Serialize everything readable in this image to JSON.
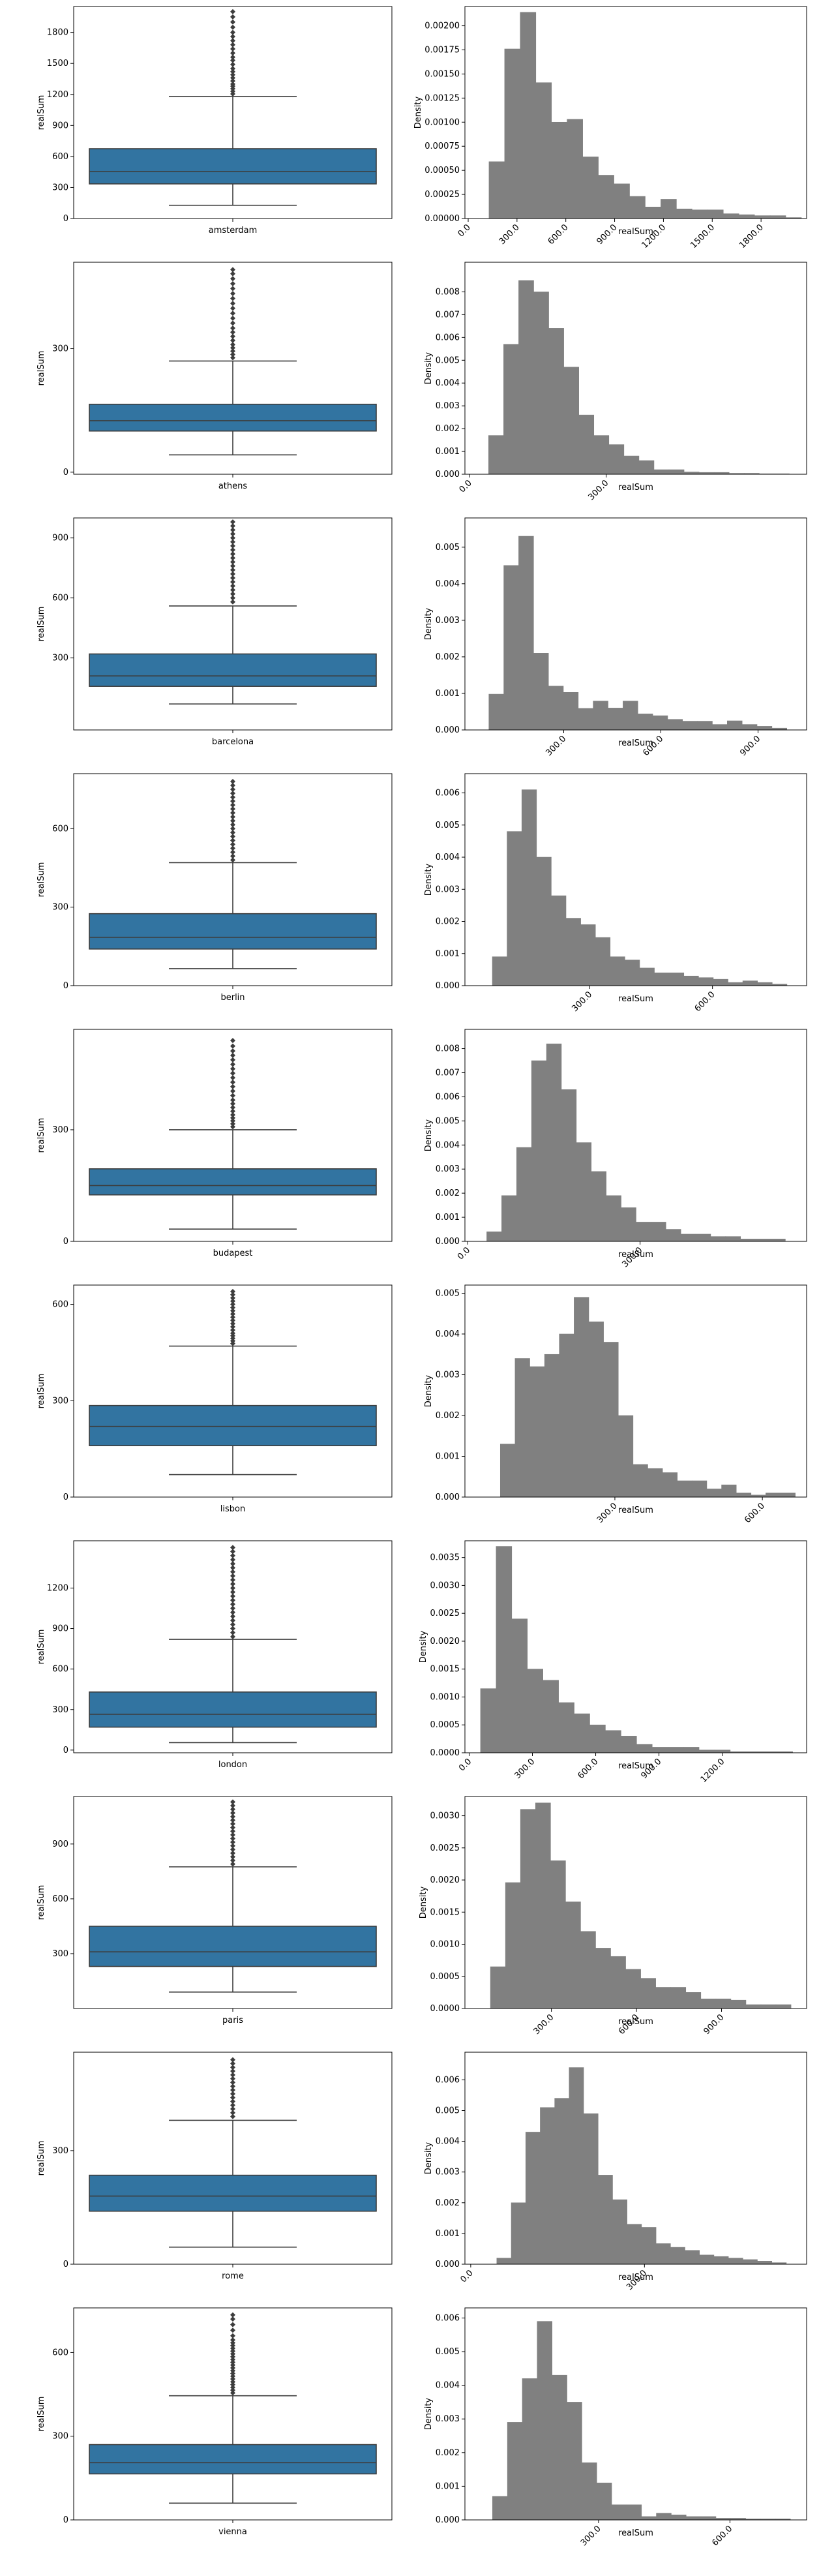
{
  "chart_data": [
    {
      "type": "box",
      "category": "amsterdam",
      "ylabel": "realSum",
      "yticks": [
        0,
        300,
        600,
        900,
        1200,
        1500,
        1800
      ],
      "ylim": [
        0,
        2050
      ],
      "whisker_low": 128,
      "q1": 335,
      "median": 455,
      "q3": 675,
      "whisker_high": 1180,
      "outliers": [
        1205,
        1230,
        1255,
        1280,
        1300,
        1330,
        1360,
        1390,
        1420,
        1450,
        1490,
        1530,
        1560,
        1600,
        1640,
        1680,
        1720,
        1760,
        1800,
        1850,
        1900,
        1950,
        2000
      ]
    },
    {
      "type": "histogram",
      "xlabel": "realSum",
      "ylabel": "Density",
      "xticks": [
        0,
        300,
        600,
        900,
        1200,
        1500,
        1800
      ],
      "xtick_labels": [
        "0.0",
        "300.0",
        "600.0",
        "900.0",
        "1200.0",
        "1500.0",
        "1800.0"
      ],
      "yticks": [
        0,
        0.00025,
        0.0005,
        0.00075,
        0.001,
        0.00125,
        0.0015,
        0.00175,
        0.002
      ],
      "ytick_labels": [
        "0.00000",
        "0.00025",
        "0.00050",
        "0.00075",
        "0.00100",
        "0.00125",
        "0.00150",
        "0.00175",
        "0.00200"
      ],
      "xlim": [
        -20,
        2080
      ],
      "ylim": [
        0,
        0.0022
      ],
      "bin_start": 128,
      "bin_width": 96,
      "values": [
        0.00059,
        0.00176,
        0.00214,
        0.00141,
        0.001,
        0.00103,
        0.00064,
        0.00045,
        0.00036,
        0.00023,
        0.00012,
        0.0002,
        0.0001,
        9e-05,
        9e-05,
        5e-05,
        4e-05,
        3e-05,
        3e-05,
        1e-05
      ]
    },
    {
      "type": "box",
      "category": "athens",
      "ylabel": "realSum",
      "yticks": [
        0,
        300
      ],
      "ylim": [
        -5,
        510
      ],
      "whisker_low": 42,
      "q1": 100,
      "median": 125,
      "q3": 165,
      "whisker_high": 270,
      "outliers": [
        278,
        286,
        294,
        302,
        310,
        320,
        330,
        340,
        350,
        362,
        374,
        386,
        398,
        410,
        422,
        434,
        446,
        458,
        470,
        482,
        492
      ]
    },
    {
      "type": "histogram",
      "xlabel": "realSum",
      "ylabel": "Density",
      "xticks": [
        0,
        300
      ],
      "xtick_labels": [
        "0.0",
        "300.0"
      ],
      "yticks": [
        0,
        0.001,
        0.002,
        0.003,
        0.004,
        0.005,
        0.006,
        0.007,
        0.008
      ],
      "ytick_labels": [
        "0.000",
        "0.001",
        "0.002",
        "0.003",
        "0.004",
        "0.005",
        "0.006",
        "0.007",
        "0.008"
      ],
      "xlim": [
        -10,
        740
      ],
      "ylim": [
        0,
        0.0093
      ],
      "bin_start": 42,
      "bin_width": 33,
      "values": [
        0.0017,
        0.0057,
        0.0085,
        0.008,
        0.0064,
        0.0047,
        0.0026,
        0.0017,
        0.0013,
        0.0008,
        0.0006,
        0.0002,
        0.0002,
        0.0001,
        8e-05,
        8e-05,
        4e-05,
        4e-05,
        2e-05,
        2e-05
      ]
    },
    {
      "type": "box",
      "category": "barcelona",
      "ylabel": "realSum",
      "yticks": [
        300,
        600,
        900
      ],
      "ylim": [
        -60,
        1000
      ],
      "whisker_low": 70,
      "q1": 158,
      "median": 210,
      "q3": 320,
      "whisker_high": 560,
      "outliers": [
        580,
        600,
        620,
        640,
        660,
        680,
        700,
        720,
        740,
        760,
        780,
        800,
        820,
        840,
        860,
        880,
        900,
        920,
        940,
        960,
        980
      ]
    },
    {
      "type": "histogram",
      "xlabel": "realSum",
      "ylabel": "Density",
      "xticks": [
        300,
        600,
        900
      ],
      "xtick_labels": [
        "300.0",
        "600.0",
        "900.0"
      ],
      "yticks": [
        0,
        0.001,
        0.002,
        0.003,
        0.004,
        0.005
      ],
      "ytick_labels": [
        "0.000",
        "0.001",
        "0.002",
        "0.003",
        "0.004",
        "0.005"
      ],
      "xlim": [
        -5,
        1050
      ],
      "ylim": [
        0,
        0.0058
      ],
      "bin_start": 69,
      "bin_width": 46,
      "values": [
        0.00098,
        0.0045,
        0.0053,
        0.0021,
        0.0012,
        0.00103,
        0.00059,
        0.00079,
        0.0006,
        0.00079,
        0.00044,
        0.00039,
        0.00029,
        0.00024,
        0.00024,
        0.00015,
        0.00025,
        0.00015,
        0.0001,
        5e-05
      ]
    },
    {
      "type": "box",
      "category": "berlin",
      "ylabel": "realSum",
      "yticks": [
        0,
        300,
        600
      ],
      "ylim": [
        0,
        810
      ],
      "whisker_low": 65,
      "q1": 140,
      "median": 185,
      "q3": 275,
      "whisker_high": 470,
      "outliers": [
        480,
        495,
        510,
        525,
        540,
        555,
        570,
        585,
        600,
        615,
        630,
        645,
        660,
        675,
        690,
        705,
        720,
        735,
        750,
        765,
        780
      ]
    },
    {
      "type": "histogram",
      "xlabel": "realSum",
      "ylabel": "Density",
      "xticks": [
        300,
        600
      ],
      "xtick_labels": [
        "300.0",
        "600.0"
      ],
      "yticks": [
        0,
        0.001,
        0.002,
        0.003,
        0.004,
        0.005,
        0.006
      ],
      "ytick_labels": [
        "0.000",
        "0.001",
        "0.002",
        "0.003",
        "0.004",
        "0.005",
        "0.006"
      ],
      "xlim": [
        -5,
        830
      ],
      "ylim": [
        0,
        0.0066
      ],
      "bin_start": 62,
      "bin_width": 36,
      "values": [
        0.0009,
        0.0048,
        0.0061,
        0.004,
        0.0028,
        0.0021,
        0.0019,
        0.0015,
        0.0009,
        0.0008,
        0.00055,
        0.0004,
        0.0004,
        0.0003,
        0.00025,
        0.0002,
        0.0001,
        0.00015,
        0.0001,
        5e-05
      ]
    },
    {
      "type": "box",
      "category": "budapest",
      "ylabel": "realSum",
      "yticks": [
        0,
        300
      ],
      "ylim": [
        0,
        570
      ],
      "whisker_low": 33,
      "q1": 125,
      "median": 150,
      "q3": 195,
      "whisker_high": 300,
      "outliers": [
        308,
        316,
        324,
        332,
        340,
        350,
        360,
        370,
        380,
        392,
        404,
        416,
        428,
        440,
        452,
        464,
        476,
        488,
        500,
        512,
        525,
        540
      ]
    },
    {
      "type": "histogram",
      "xlabel": "realSum",
      "ylabel": "Density",
      "xticks": [
        0,
        300
      ],
      "xtick_labels": [
        "0.0",
        "300.0"
      ],
      "yticks": [
        0,
        0.001,
        0.002,
        0.003,
        0.004,
        0.005,
        0.006,
        0.007,
        0.008
      ],
      "ytick_labels": [
        "0.000",
        "0.001",
        "0.002",
        "0.003",
        "0.004",
        "0.005",
        "0.006",
        "0.007",
        "0.008"
      ],
      "xlim": [
        -5,
        590
      ],
      "ylim": [
        0,
        0.0088
      ],
      "bin_start": 33,
      "bin_width": 26,
      "values": [
        0.0004,
        0.0019,
        0.0039,
        0.0075,
        0.0082,
        0.0063,
        0.0041,
        0.0029,
        0.0019,
        0.0014,
        0.0008,
        0.0008,
        0.0005,
        0.0003,
        0.0003,
        0.0002,
        0.0002,
        0.0001,
        0.0001,
        0.0001
      ]
    },
    {
      "type": "box",
      "category": "lisbon",
      "ylabel": "realSum",
      "yticks": [
        0,
        300,
        600
      ],
      "ylim": [
        0,
        660
      ],
      "whisker_low": 70,
      "q1": 160,
      "median": 220,
      "q3": 285,
      "whisker_high": 470,
      "outliers": [
        478,
        486,
        494,
        502,
        510,
        520,
        530,
        540,
        550,
        560,
        570,
        580,
        590,
        600,
        610,
        620,
        630,
        640
      ]
    },
    {
      "type": "histogram",
      "xlabel": "realSum",
      "ylabel": "Density",
      "xticks": [
        300,
        600
      ],
      "xtick_labels": [
        "300.0",
        "600.0"
      ],
      "yticks": [
        0,
        0.001,
        0.002,
        0.003,
        0.004,
        0.005
      ],
      "ytick_labels": [
        "0.000",
        "0.001",
        "0.002",
        "0.003",
        "0.004",
        "0.005"
      ],
      "xlim": [
        -5,
        690
      ],
      "ylim": [
        0,
        0.0052
      ],
      "bin_start": 67,
      "bin_width": 30,
      "values": [
        0.0013,
        0.0034,
        0.0032,
        0.0035,
        0.004,
        0.0049,
        0.0043,
        0.0038,
        0.002,
        0.0008,
        0.0007,
        0.0006,
        0.0004,
        0.0004,
        0.0002,
        0.0003,
        0.0001,
        5e-05,
        0.0001,
        0.0001
      ]
    },
    {
      "type": "box",
      "category": "london",
      "ylabel": "realSum",
      "yticks": [
        0,
        300,
        600,
        900,
        1200
      ],
      "ylim": [
        -20,
        1550
      ],
      "whisker_low": 55,
      "q1": 170,
      "median": 265,
      "q3": 430,
      "whisker_high": 820,
      "outliers": [
        840,
        870,
        900,
        930,
        960,
        990,
        1020,
        1050,
        1080,
        1110,
        1140,
        1170,
        1200,
        1230,
        1260,
        1290,
        1320,
        1350,
        1380,
        1410,
        1440,
        1470,
        1500
      ]
    },
    {
      "type": "histogram",
      "xlabel": "realSum",
      "ylabel": "Density",
      "xticks": [
        0,
        300,
        600,
        900,
        1200
      ],
      "xtick_labels": [
        "0.0",
        "300.0",
        "600.0",
        "900.0",
        "1200.0"
      ],
      "yticks": [
        0,
        0.0005,
        0.001,
        0.0015,
        0.002,
        0.0025,
        0.003,
        0.0035
      ],
      "ytick_labels": [
        "0.0000",
        "0.0005",
        "0.0010",
        "0.0015",
        "0.0020",
        "0.0025",
        "0.0030",
        "0.0035"
      ],
      "xlim": [
        -20,
        1600
      ],
      "ylim": [
        0,
        0.0038
      ],
      "bin_start": 54,
      "bin_width": 74,
      "values": [
        0.00115,
        0.0037,
        0.0024,
        0.0015,
        0.0013,
        0.0009,
        0.0007,
        0.0005,
        0.0004,
        0.0003,
        0.00015,
        0.0001,
        0.0001,
        0.0001,
        5e-05,
        5e-05,
        2e-05,
        2e-05,
        2e-05,
        2e-05
      ]
    },
    {
      "type": "box",
      "category": "paris",
      "ylabel": "realSum",
      "yticks": [
        300,
        600,
        900
      ],
      "ylim": [
        0,
        1160
      ],
      "whisker_low": 90,
      "q1": 230,
      "median": 310,
      "q3": 450,
      "whisker_high": 775,
      "outliers": [
        790,
        810,
        830,
        850,
        870,
        890,
        910,
        930,
        950,
        970,
        990,
        1010,
        1030,
        1050,
        1070,
        1090,
        1110,
        1130
      ]
    },
    {
      "type": "histogram",
      "xlabel": "realSum",
      "ylabel": "Density",
      "xticks": [
        300,
        600,
        900
      ],
      "xtick_labels": [
        "300.0",
        "600.0",
        "900.0"
      ],
      "yticks": [
        0,
        0.0005,
        0.001,
        0.0015,
        0.002,
        0.0025,
        0.003
      ],
      "ytick_labels": [
        "0.0000",
        "0.0005",
        "0.0010",
        "0.0015",
        "0.0020",
        "0.0025",
        "0.0030"
      ],
      "xlim": [
        -5,
        1200
      ],
      "ylim": [
        0,
        0.0033
      ],
      "bin_start": 85,
      "bin_width": 53,
      "values": [
        0.00065,
        0.00196,
        0.0031,
        0.0032,
        0.0023,
        0.00166,
        0.0012,
        0.00094,
        0.00081,
        0.00061,
        0.00047,
        0.00033,
        0.00033,
        0.00025,
        0.00015,
        0.00015,
        0.00013,
        6e-05,
        6e-05,
        6e-05
      ]
    },
    {
      "type": "box",
      "category": "rome",
      "ylabel": "realSum",
      "yticks": [
        0,
        300
      ],
      "ylim": [
        0,
        560
      ],
      "whisker_low": 45,
      "q1": 140,
      "median": 180,
      "q3": 235,
      "whisker_high": 380,
      "outliers": [
        390,
        400,
        410,
        420,
        430,
        440,
        450,
        460,
        470,
        480,
        490,
        500,
        510,
        520,
        530,
        540
      ]
    },
    {
      "type": "histogram",
      "xlabel": "realSum",
      "ylabel": "Density",
      "xticks": [
        0,
        300
      ],
      "xtick_labels": [
        "0.0",
        "300.0"
      ],
      "yticks": [
        0,
        0.001,
        0.002,
        0.003,
        0.004,
        0.005,
        0.006
      ],
      "ytick_labels": [
        "0.000",
        "0.001",
        "0.002",
        "0.003",
        "0.004",
        "0.005",
        "0.006"
      ],
      "xlim": [
        -10,
        580
      ],
      "ylim": [
        0,
        0.0069
      ],
      "bin_start": 45,
      "bin_width": 25,
      "values": [
        0.0002,
        0.002,
        0.0043,
        0.0051,
        0.0054,
        0.0064,
        0.0049,
        0.0029,
        0.0021,
        0.0013,
        0.0012,
        0.00067,
        0.00055,
        0.00045,
        0.0003,
        0.00025,
        0.0002,
        0.00015,
        0.0001,
        5e-05
      ]
    },
    {
      "type": "box",
      "category": "vienna",
      "ylabel": "realSum",
      "yticks": [
        0,
        300,
        600
      ],
      "ylim": [
        0,
        760
      ],
      "whisker_low": 60,
      "q1": 165,
      "median": 205,
      "q3": 270,
      "whisker_high": 445,
      "outliers": [
        455,
        465,
        475,
        485,
        495,
        505,
        515,
        525,
        535,
        545,
        555,
        565,
        575,
        585,
        595,
        605,
        615,
        625,
        635,
        645,
        660,
        680,
        700,
        720,
        735
      ]
    },
    {
      "type": "histogram",
      "xlabel": "realSum",
      "ylabel": "Density",
      "xticks": [
        300,
        600
      ],
      "xtick_labels": [
        "300.0",
        "600.0"
      ],
      "yticks": [
        0,
        0.001,
        0.002,
        0.003,
        0.004,
        0.005,
        0.006
      ],
      "ytick_labels": [
        "0.000",
        "0.001",
        "0.002",
        "0.003",
        "0.004",
        "0.005",
        "0.006"
      ],
      "xlim": [
        -5,
        775
      ],
      "ylim": [
        0,
        0.0063
      ],
      "bin_start": 58,
      "bin_width": 34,
      "values": [
        0.0007,
        0.0029,
        0.0042,
        0.0059,
        0.0043,
        0.0035,
        0.0017,
        0.0011,
        0.00045,
        0.00045,
        0.0001,
        0.0002,
        0.00015,
        0.0001,
        0.0001,
        5e-05,
        5e-05,
        3e-05,
        3e-05,
        3e-05
      ]
    }
  ],
  "colors": {
    "box_fill": "#3274a1",
    "hist_fill": "#808080",
    "line": "#3d3d3d",
    "axis": "#000000"
  }
}
